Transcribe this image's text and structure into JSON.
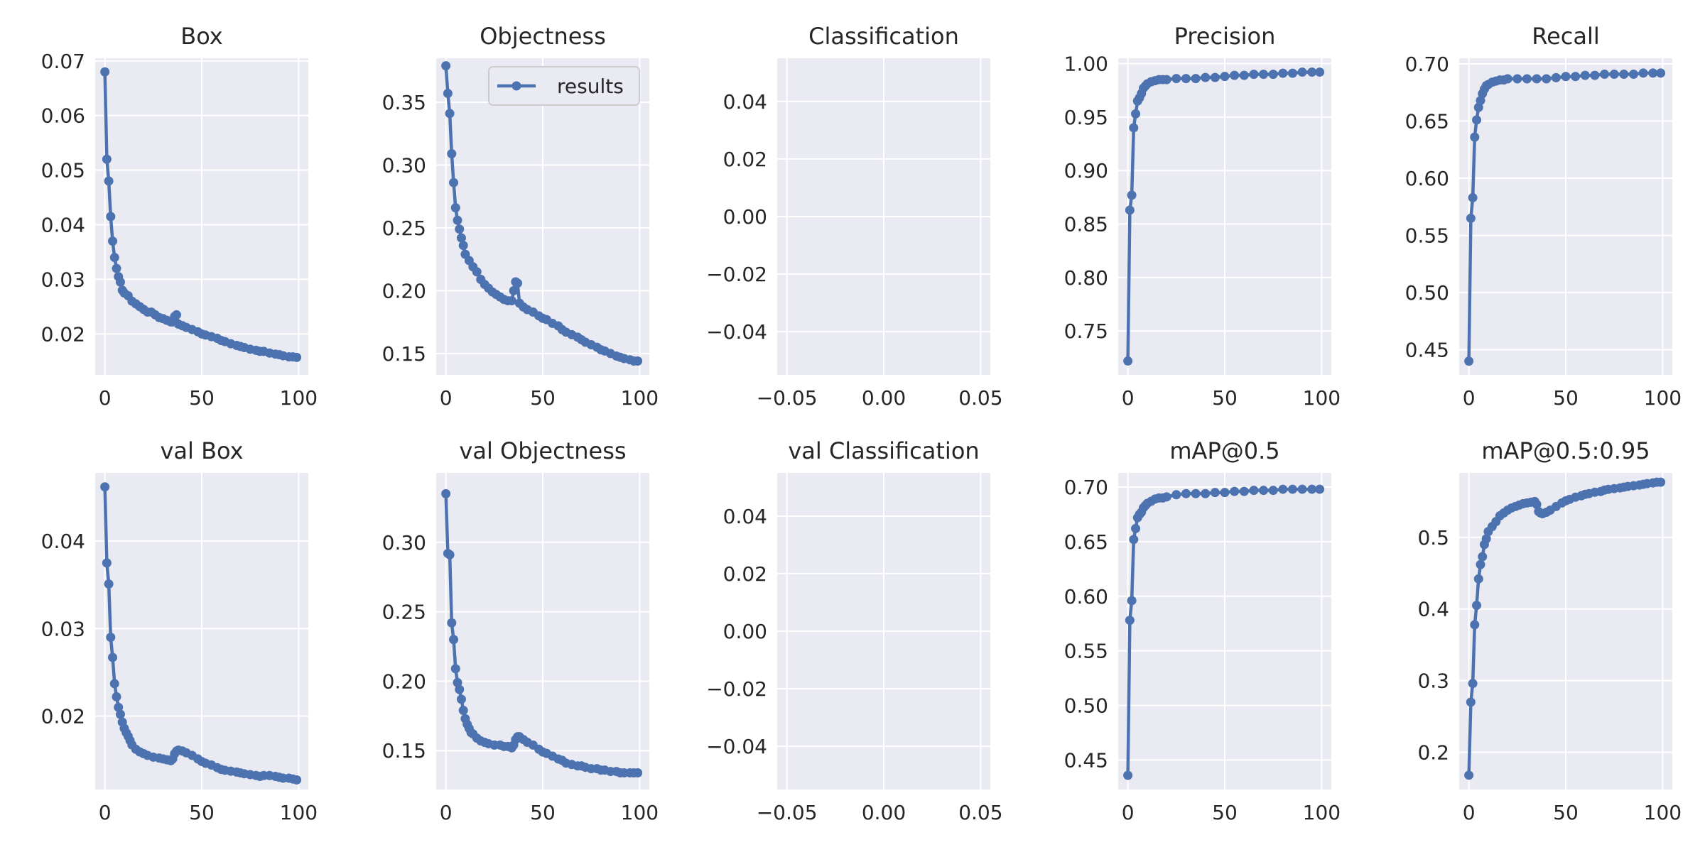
{
  "chart_data": [
    {
      "type": "line",
      "title": "Box",
      "xlim": [
        -5,
        105
      ],
      "ylim": [
        0.0125,
        0.0705
      ],
      "xticks": [
        0,
        50,
        100
      ],
      "xtick_labels": [
        "0",
        "50",
        "100"
      ],
      "yticks": [
        0.02,
        0.03,
        0.04,
        0.05,
        0.06,
        0.07
      ],
      "ytick_labels": [
        "0.02",
        "0.03",
        "0.04",
        "0.05",
        "0.06",
        "0.07"
      ],
      "series": [
        {
          "x": [
            0,
            1,
            2,
            3,
            4,
            5,
            6,
            7,
            8,
            9,
            10,
            12,
            14,
            16,
            18,
            20,
            22,
            24,
            26,
            28,
            30,
            32,
            34,
            35,
            36,
            37,
            38,
            40,
            42,
            45,
            48,
            50,
            52,
            55,
            58,
            60,
            62,
            65,
            68,
            70,
            72,
            75,
            78,
            80,
            82,
            85,
            88,
            90,
            92,
            95,
            97,
            99
          ],
          "y": [
            0.068,
            0.052,
            0.048,
            0.0415,
            0.037,
            0.034,
            0.032,
            0.0305,
            0.0295,
            0.028,
            0.0275,
            0.027,
            0.026,
            0.0255,
            0.025,
            0.0245,
            0.024,
            0.024,
            0.0235,
            0.023,
            0.0228,
            0.0225,
            0.0222,
            0.0222,
            0.0232,
            0.0235,
            0.0218,
            0.0215,
            0.0212,
            0.0208,
            0.0204,
            0.02,
            0.0198,
            0.0195,
            0.0192,
            0.0188,
            0.0186,
            0.0182,
            0.0179,
            0.0177,
            0.0175,
            0.0172,
            0.017,
            0.0168,
            0.0168,
            0.0165,
            0.0163,
            0.0162,
            0.016,
            0.0158,
            0.0158,
            0.0157
          ]
        }
      ]
    },
    {
      "type": "line",
      "title": "Objectness",
      "xlim": [
        -5,
        105
      ],
      "ylim": [
        0.133,
        0.385
      ],
      "xticks": [
        0,
        50,
        100
      ],
      "xtick_labels": [
        "0",
        "50",
        "100"
      ],
      "yticks": [
        0.15,
        0.2,
        0.25,
        0.3,
        0.35
      ],
      "ytick_labels": [
        "0.15",
        "0.20",
        "0.25",
        "0.30",
        "0.35"
      ],
      "legend": {
        "label": "results",
        "position": "upper right"
      },
      "series": [
        {
          "name": "results",
          "x": [
            0,
            1,
            2,
            3,
            4,
            5,
            6,
            7,
            8,
            9,
            10,
            12,
            14,
            16,
            18,
            20,
            22,
            24,
            26,
            28,
            30,
            32,
            34,
            35,
            36,
            37,
            38,
            40,
            42,
            45,
            48,
            50,
            52,
            55,
            58,
            60,
            62,
            65,
            68,
            70,
            72,
            75,
            78,
            80,
            82,
            85,
            88,
            90,
            92,
            95,
            97,
            99
          ],
          "y": [
            0.379,
            0.357,
            0.341,
            0.309,
            0.286,
            0.266,
            0.256,
            0.249,
            0.242,
            0.236,
            0.229,
            0.224,
            0.219,
            0.215,
            0.209,
            0.205,
            0.202,
            0.199,
            0.197,
            0.195,
            0.193,
            0.192,
            0.192,
            0.2,
            0.207,
            0.206,
            0.19,
            0.187,
            0.185,
            0.183,
            0.18,
            0.178,
            0.177,
            0.174,
            0.172,
            0.169,
            0.167,
            0.165,
            0.163,
            0.161,
            0.159,
            0.157,
            0.155,
            0.153,
            0.152,
            0.15,
            0.148,
            0.147,
            0.146,
            0.145,
            0.144,
            0.144
          ]
        }
      ]
    },
    {
      "type": "line",
      "title": "Classification",
      "xlim": [
        -0.055,
        0.055
      ],
      "ylim": [
        -0.055,
        0.055
      ],
      "xticks": [
        -0.05,
        0,
        0.05
      ],
      "xtick_labels": [
        "−0.05",
        "0.00",
        "0.05"
      ],
      "yticks": [
        -0.04,
        -0.02,
        0,
        0.02,
        0.04
      ],
      "ytick_labels": [
        "−0.04",
        "−0.02",
        "0.00",
        "0.02",
        "0.04"
      ],
      "series": []
    },
    {
      "type": "line",
      "title": "Precision",
      "xlim": [
        -5,
        105
      ],
      "ylim": [
        0.709,
        1.005
      ],
      "xticks": [
        0,
        50,
        100
      ],
      "xtick_labels": [
        "0",
        "50",
        "100"
      ],
      "yticks": [
        0.75,
        0.8,
        0.85,
        0.9,
        0.95,
        1.0
      ],
      "ytick_labels": [
        "0.75",
        "0.80",
        "0.85",
        "0.90",
        "0.95",
        "1.00"
      ],
      "series": [
        {
          "x": [
            0,
            1,
            2,
            3,
            4,
            5,
            6,
            7,
            8,
            9,
            10,
            12,
            14,
            16,
            18,
            20,
            25,
            30,
            35,
            40,
            45,
            50,
            55,
            60,
            65,
            70,
            75,
            80,
            85,
            90,
            95,
            99
          ],
          "y": [
            0.722,
            0.863,
            0.877,
            0.94,
            0.953,
            0.965,
            0.968,
            0.972,
            0.977,
            0.979,
            0.981,
            0.983,
            0.984,
            0.985,
            0.985,
            0.985,
            0.986,
            0.986,
            0.986,
            0.987,
            0.987,
            0.988,
            0.989,
            0.989,
            0.99,
            0.99,
            0.99,
            0.991,
            0.991,
            0.992,
            0.992,
            0.992
          ]
        }
      ]
    },
    {
      "type": "line",
      "title": "Recall",
      "xlim": [
        -5,
        105
      ],
      "ylim": [
        0.428,
        0.705
      ],
      "xticks": [
        0,
        50,
        100
      ],
      "xtick_labels": [
        "0",
        "50",
        "100"
      ],
      "yticks": [
        0.45,
        0.5,
        0.55,
        0.6,
        0.65,
        0.7
      ],
      "ytick_labels": [
        "0.45",
        "0.50",
        "0.55",
        "0.60",
        "0.65",
        "0.70"
      ],
      "series": [
        {
          "x": [
            0,
            1,
            2,
            3,
            4,
            5,
            6,
            7,
            8,
            9,
            10,
            12,
            14,
            16,
            18,
            20,
            25,
            30,
            35,
            40,
            45,
            50,
            55,
            60,
            65,
            70,
            75,
            80,
            85,
            90,
            95,
            99
          ],
          "y": [
            0.44,
            0.565,
            0.583,
            0.636,
            0.651,
            0.662,
            0.668,
            0.674,
            0.678,
            0.681,
            0.682,
            0.684,
            0.685,
            0.686,
            0.686,
            0.687,
            0.687,
            0.687,
            0.687,
            0.687,
            0.688,
            0.689,
            0.689,
            0.69,
            0.69,
            0.691,
            0.691,
            0.691,
            0.691,
            0.692,
            0.692,
            0.692
          ]
        }
      ]
    },
    {
      "type": "line",
      "title": "val Box",
      "xlim": [
        -5,
        105
      ],
      "ylim": [
        0.0116,
        0.0478
      ],
      "xticks": [
        0,
        50,
        100
      ],
      "xtick_labels": [
        "0",
        "50",
        "100"
      ],
      "yticks": [
        0.02,
        0.03,
        0.04
      ],
      "ytick_labels": [
        "0.02",
        "0.03",
        "0.04"
      ],
      "series": [
        {
          "x": [
            0,
            1,
            2,
            3,
            4,
            5,
            6,
            7,
            8,
            9,
            10,
            11,
            12,
            13,
            14,
            16,
            18,
            20,
            22,
            25,
            28,
            30,
            32,
            34,
            35,
            36,
            37,
            38,
            40,
            42,
            45,
            48,
            50,
            52,
            55,
            58,
            60,
            62,
            65,
            68,
            70,
            72,
            75,
            78,
            80,
            82,
            85,
            88,
            90,
            92,
            95,
            97,
            99
          ],
          "y": [
            0.0462,
            0.0375,
            0.0351,
            0.029,
            0.0267,
            0.0237,
            0.0222,
            0.021,
            0.0202,
            0.0193,
            0.0186,
            0.0181,
            0.0177,
            0.0172,
            0.0167,
            0.0162,
            0.0159,
            0.0157,
            0.0155,
            0.0153,
            0.0152,
            0.0151,
            0.015,
            0.0149,
            0.0151,
            0.0157,
            0.016,
            0.0161,
            0.016,
            0.0158,
            0.0155,
            0.0151,
            0.0148,
            0.0146,
            0.0144,
            0.0141,
            0.0139,
            0.0138,
            0.0137,
            0.0136,
            0.0135,
            0.0134,
            0.0133,
            0.0132,
            0.0131,
            0.0132,
            0.0132,
            0.0131,
            0.013,
            0.0129,
            0.0129,
            0.0128,
            0.0127
          ]
        }
      ]
    },
    {
      "type": "line",
      "title": "val Objectness",
      "xlim": [
        -5,
        105
      ],
      "ylim": [
        0.122,
        0.35
      ],
      "xticks": [
        0,
        50,
        100
      ],
      "xtick_labels": [
        "0",
        "50",
        "100"
      ],
      "yticks": [
        0.15,
        0.2,
        0.25,
        0.3
      ],
      "ytick_labels": [
        "0.15",
        "0.20",
        "0.25",
        "0.30"
      ],
      "series": [
        {
          "x": [
            0,
            1,
            2,
            3,
            4,
            5,
            6,
            7,
            8,
            9,
            10,
            11,
            12,
            13,
            14,
            16,
            18,
            20,
            22,
            25,
            28,
            30,
            32,
            34,
            35,
            36,
            37,
            38,
            40,
            42,
            45,
            48,
            50,
            52,
            55,
            58,
            60,
            62,
            65,
            68,
            70,
            72,
            75,
            78,
            80,
            82,
            85,
            88,
            90,
            92,
            95,
            97,
            99
          ],
          "y": [
            0.335,
            0.292,
            0.291,
            0.242,
            0.23,
            0.209,
            0.199,
            0.194,
            0.187,
            0.179,
            0.173,
            0.169,
            0.166,
            0.163,
            0.162,
            0.159,
            0.157,
            0.156,
            0.155,
            0.154,
            0.154,
            0.153,
            0.153,
            0.152,
            0.154,
            0.158,
            0.16,
            0.16,
            0.158,
            0.156,
            0.154,
            0.151,
            0.149,
            0.148,
            0.146,
            0.144,
            0.143,
            0.141,
            0.14,
            0.139,
            0.139,
            0.138,
            0.137,
            0.137,
            0.136,
            0.136,
            0.135,
            0.135,
            0.134,
            0.134,
            0.134,
            0.134,
            0.134
          ]
        }
      ]
    },
    {
      "type": "line",
      "title": "val Classification",
      "xlim": [
        -0.055,
        0.055
      ],
      "ylim": [
        -0.055,
        0.055
      ],
      "xticks": [
        -0.05,
        0,
        0.05
      ],
      "xtick_labels": [
        "−0.05",
        "0.00",
        "0.05"
      ],
      "yticks": [
        -0.04,
        -0.02,
        0,
        0.02,
        0.04
      ],
      "ytick_labels": [
        "−0.04",
        "−0.02",
        "0.00",
        "0.02",
        "0.04"
      ],
      "series": []
    },
    {
      "type": "line",
      "title": "mAP@0.5",
      "xlim": [
        -5,
        105
      ],
      "ylim": [
        0.423,
        0.713
      ],
      "xticks": [
        0,
        50,
        100
      ],
      "xtick_labels": [
        "0",
        "50",
        "100"
      ],
      "yticks": [
        0.45,
        0.5,
        0.55,
        0.6,
        0.65,
        0.7
      ],
      "ytick_labels": [
        "0.45",
        "0.50",
        "0.55",
        "0.60",
        "0.65",
        "0.70"
      ],
      "series": [
        {
          "x": [
            0,
            1,
            2,
            3,
            4,
            5,
            6,
            7,
            8,
            9,
            10,
            12,
            14,
            16,
            18,
            20,
            25,
            30,
            35,
            40,
            45,
            50,
            55,
            60,
            65,
            70,
            75,
            80,
            85,
            90,
            95,
            99
          ],
          "y": [
            0.436,
            0.578,
            0.596,
            0.652,
            0.662,
            0.672,
            0.675,
            0.677,
            0.681,
            0.683,
            0.685,
            0.687,
            0.689,
            0.69,
            0.69,
            0.691,
            0.693,
            0.694,
            0.694,
            0.694,
            0.695,
            0.695,
            0.696,
            0.696,
            0.697,
            0.697,
            0.697,
            0.698,
            0.698,
            0.698,
            0.698,
            0.698
          ]
        }
      ]
    },
    {
      "type": "line",
      "title": "mAP@0.5:0.95",
      "xlim": [
        -5,
        105
      ],
      "ylim": [
        0.148,
        0.59
      ],
      "xticks": [
        0,
        50,
        100
      ],
      "xtick_labels": [
        "0",
        "50",
        "100"
      ],
      "yticks": [
        0.2,
        0.3,
        0.4,
        0.5
      ],
      "ytick_labels": [
        "0.2",
        "0.3",
        "0.4",
        "0.5"
      ],
      "series": [
        {
          "x": [
            0,
            1,
            2,
            3,
            4,
            5,
            6,
            7,
            8,
            9,
            10,
            12,
            14,
            16,
            18,
            20,
            22,
            24,
            26,
            28,
            30,
            32,
            34,
            35,
            36,
            37,
            38,
            40,
            42,
            45,
            48,
            50,
            52,
            55,
            58,
            60,
            62,
            65,
            68,
            70,
            72,
            75,
            78,
            80,
            82,
            85,
            88,
            90,
            92,
            95,
            97,
            99
          ],
          "y": [
            0.168,
            0.27,
            0.296,
            0.378,
            0.405,
            0.442,
            0.462,
            0.473,
            0.49,
            0.498,
            0.508,
            0.515,
            0.522,
            0.53,
            0.534,
            0.538,
            0.541,
            0.543,
            0.545,
            0.547,
            0.548,
            0.549,
            0.55,
            0.546,
            0.536,
            0.534,
            0.533,
            0.535,
            0.538,
            0.543,
            0.548,
            0.551,
            0.553,
            0.556,
            0.558,
            0.56,
            0.561,
            0.563,
            0.564,
            0.566,
            0.567,
            0.568,
            0.569,
            0.57,
            0.571,
            0.572,
            0.573,
            0.574,
            0.575,
            0.576,
            0.577,
            0.577
          ]
        }
      ]
    }
  ]
}
